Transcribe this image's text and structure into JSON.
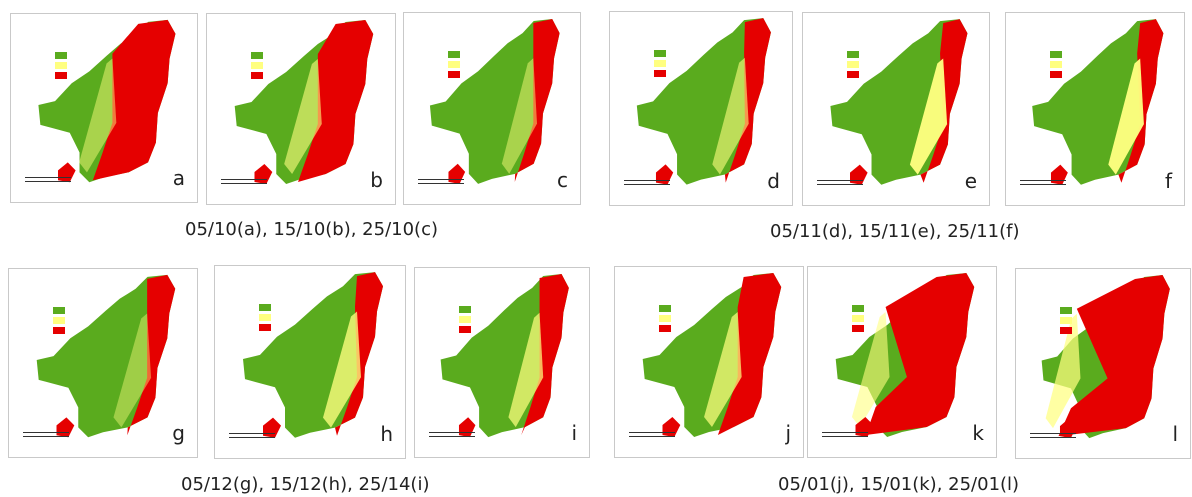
{
  "colors": {
    "high": "#5aab1e",
    "medium": "#ffff80",
    "low": "#e50000"
  },
  "legend": [
    {
      "key": "high",
      "label": ""
    },
    {
      "key": "medium",
      "label": ""
    },
    {
      "key": "low",
      "label": ""
    }
  ],
  "panels": [
    {
      "letter": "a",
      "mix": [
        0.45,
        0.08,
        0.47
      ]
    },
    {
      "letter": "b",
      "mix": [
        0.5,
        0.1,
        0.4
      ]
    },
    {
      "letter": "c",
      "mix": [
        0.75,
        0.08,
        0.17
      ]
    },
    {
      "letter": "d",
      "mix": [
        0.74,
        0.1,
        0.16
      ]
    },
    {
      "letter": "e",
      "mix": [
        0.7,
        0.16,
        0.14
      ]
    },
    {
      "letter": "f",
      "mix": [
        0.7,
        0.16,
        0.14
      ]
    },
    {
      "letter": "g",
      "mix": [
        0.76,
        0.07,
        0.17
      ]
    },
    {
      "letter": "h",
      "mix": [
        0.72,
        0.13,
        0.15
      ]
    },
    {
      "letter": "i",
      "mix": [
        0.68,
        0.12,
        0.2
      ]
    },
    {
      "letter": "j",
      "mix": [
        0.58,
        0.12,
        0.3
      ]
    },
    {
      "letter": "k",
      "mix": [
        0.22,
        0.1,
        0.68
      ]
    },
    {
      "letter": "l",
      "mix": [
        0.1,
        0.12,
        0.78
      ]
    }
  ],
  "captions": [
    "05/10(a), 15/10(b), 25/10(c)",
    "05/11(d), 15/11(e), 25/11(f)",
    "05/12(g), 15/12(h), 25/14(i)",
    "05/01(j), 15/01(k), 25/01(l)"
  ]
}
